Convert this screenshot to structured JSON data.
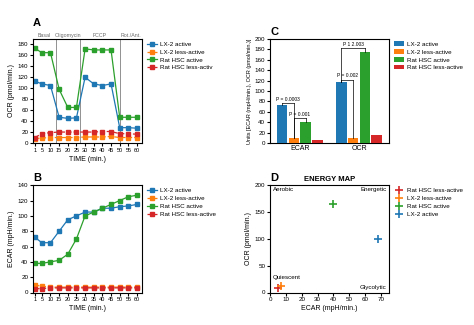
{
  "chart_data": [
    {
      "type": "line",
      "panel_label": "A",
      "xlabel": "TIME (min.)",
      "ylabel": "OCR (pmol/min.)",
      "x": [
        1,
        5,
        10,
        15,
        20,
        25,
        30,
        35,
        40,
        45,
        50,
        55,
        60
      ],
      "xlim": [
        0,
        63
      ],
      "xticks": [
        1,
        5,
        10,
        15,
        20,
        25,
        30,
        35,
        40,
        45,
        50,
        55,
        60
      ],
      "ylim": [
        0,
        190
      ],
      "yticks": [
        0,
        20,
        40,
        60,
        80,
        100,
        120,
        140,
        160,
        180
      ],
      "marker": "s",
      "series": [
        {
          "name": "LX-2 active",
          "line_style": "solid",
          "values": [
            113,
            108,
            105,
            47,
            45,
            46,
            120,
            108,
            105,
            108,
            28,
            28,
            27
          ]
        },
        {
          "name": "LX-2 less-active",
          "line_style": "dashed",
          "values": [
            8,
            9,
            10,
            10,
            10,
            10,
            11,
            11,
            11,
            12,
            10,
            10,
            10
          ]
        },
        {
          "name": "Rat HSC active",
          "line_style": "solid",
          "values": [
            173,
            165,
            165,
            98,
            65,
            65,
            172,
            170,
            170,
            170,
            47,
            47,
            47
          ]
        },
        {
          "name": "Rat HSC less-activ",
          "line_style": "dashed",
          "values": [
            10,
            17,
            19,
            20,
            20,
            20,
            20,
            20,
            21,
            21,
            17,
            17,
            16
          ]
        }
      ],
      "vlines": [
        13,
        27,
        50
      ],
      "sections": [
        "Basal",
        "Oligomycin",
        "FCCP",
        "Rot./Ant."
      ]
    },
    {
      "type": "line",
      "panel_label": "B",
      "xlabel": "TIME (min.)",
      "ylabel": "ECAR (mpH/min.)",
      "x": [
        1,
        5,
        10,
        15,
        20,
        25,
        30,
        35,
        40,
        45,
        50,
        55,
        60
      ],
      "xlim": [
        0,
        63
      ],
      "xticks": [
        1,
        5,
        10,
        15,
        20,
        25,
        30,
        35,
        40,
        45,
        50,
        55,
        60
      ],
      "ylim": [
        0,
        140
      ],
      "yticks": [
        0,
        20,
        40,
        60,
        80,
        100,
        120,
        140
      ],
      "marker": "s",
      "series": [
        {
          "name": "LX-2 active",
          "line_style": "solid",
          "values": [
            72,
            65,
            65,
            80,
            95,
            100,
            105,
            105,
            110,
            110,
            112,
            113,
            115
          ]
        },
        {
          "name": "LX-2 less-active",
          "line_style": "dashed",
          "values": [
            10,
            8,
            7,
            7,
            7,
            7,
            7,
            7,
            7,
            7,
            7,
            7,
            7
          ]
        },
        {
          "name": "Rat HSC active",
          "line_style": "solid",
          "values": [
            38,
            38,
            40,
            42,
            50,
            70,
            100,
            105,
            110,
            115,
            120,
            125,
            127
          ]
        },
        {
          "name": "Rat HSC less-active",
          "line_style": "dashed",
          "values": [
            5,
            5,
            6,
            6,
            6,
            6,
            6,
            6,
            6,
            6,
            6,
            6,
            6
          ]
        }
      ]
    },
    {
      "type": "bar",
      "panel_label": "C",
      "ylabel": "Units [ECAR (mpH/min.), OCR (pmol/min.)]",
      "categories": [
        "ECAR",
        "OCR"
      ],
      "ylim": [
        0,
        200
      ],
      "yticks": [
        0,
        20,
        40,
        60,
        80,
        100,
        120,
        140,
        160,
        180,
        200
      ],
      "series": [
        {
          "name": "LX-2 active",
          "values": [
            73,
            118
          ]
        },
        {
          "name": "LX-2 less-active",
          "values": [
            10,
            10
          ]
        },
        {
          "name": "Rat HSC active",
          "values": [
            40,
            175
          ]
        },
        {
          "name": "Rat HSC less-active",
          "values": [
            5,
            15
          ]
        }
      ],
      "annotations": [
        {
          "text": "P = 0.0003",
          "category": "ECAR",
          "between": [
            "LX-2 active",
            "LX-2 less-active"
          ],
          "y": 76
        },
        {
          "text": "P = 0.001",
          "category": "ECAR",
          "between": [
            "LX-2 less-active",
            "Rat HSC active"
          ],
          "y": 48
        },
        {
          "text": "P = 0.002",
          "category": "OCR",
          "between": [
            "LX-2 active",
            "LX-2 less-active"
          ],
          "y": 122
        },
        {
          "text": "P 1 2.003",
          "category": "OCR",
          "between": [
            "LX-2 active",
            "Rat HSC active"
          ],
          "y": 182
        }
      ]
    },
    {
      "type": "scatter",
      "panel_label": "D",
      "title": "ENERGY MAP",
      "xlabel": "ECAR (mpH/min.)",
      "ylabel": "OCR (pmol/min.)",
      "xlim": [
        0,
        75
      ],
      "xticks": [
        0,
        10,
        20,
        30,
        40,
        50,
        60,
        70
      ],
      "ylim": [
        0,
        200
      ],
      "yticks": [
        0,
        50,
        100,
        150,
        200
      ],
      "marker": "+",
      "series": [
        {
          "name": "Rat HSC less-active",
          "x": [
            5
          ],
          "y": [
            8
          ]
        },
        {
          "name": "LX-2 less-active",
          "x": [
            7
          ],
          "y": [
            12
          ]
        },
        {
          "name": "Rat HSC active",
          "x": [
            40
          ],
          "y": [
            165
          ]
        },
        {
          "name": "LX-2 active",
          "x": [
            68
          ],
          "y": [
            100
          ]
        }
      ],
      "quadrants": [
        "Aerobic",
        "Energetic",
        "Quiescent",
        "Glycolytic"
      ]
    }
  ]
}
